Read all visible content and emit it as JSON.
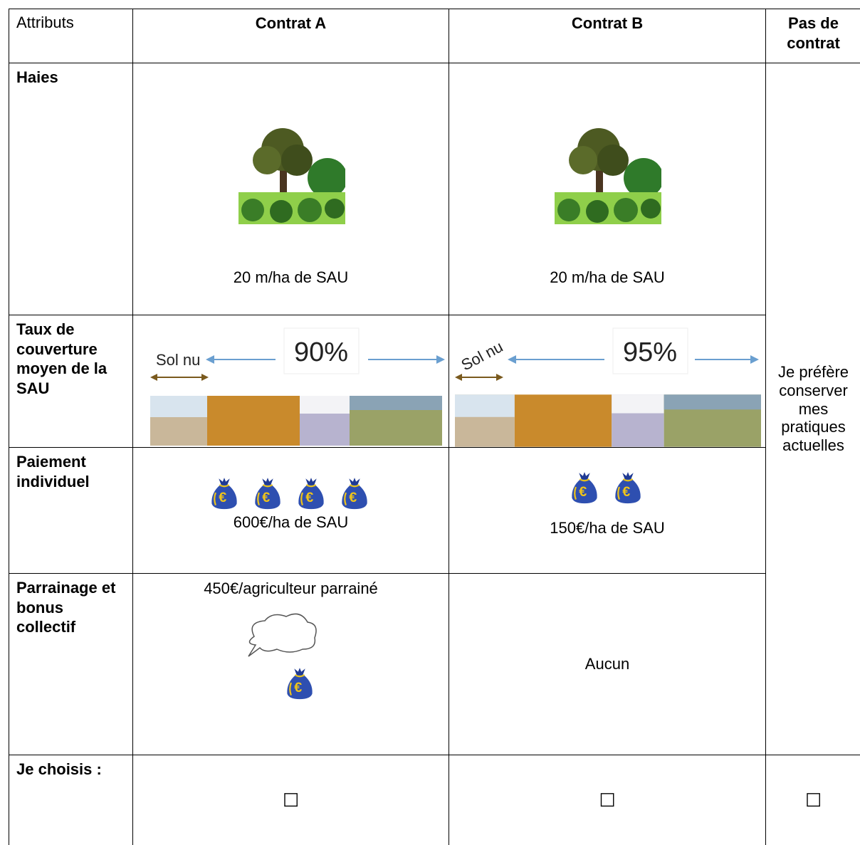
{
  "table": {
    "header": [
      "Attributs",
      "Contrat A",
      "Contrat B",
      "Pas de contrat"
    ],
    "rows": [
      {
        "label": "Haies",
        "a": "20 m/ha de SAU",
        "b": "20 m/ha de SAU"
      },
      {
        "label": "Taux de couverture moyen de la SAU",
        "a": {
          "soil": "Sol nu",
          "percent": "90%"
        },
        "b": {
          "soil": "Sol nu",
          "percent": "95%"
        }
      },
      {
        "label": "Paiement individuel",
        "a": "600€/ha de SAU",
        "b": "150€/ha de SAU"
      },
      {
        "label": "Parrainage et bonus collectif",
        "a": "450€/agriculteur parrainé",
        "b": "Aucun"
      },
      {
        "label": "Je choisis :",
        "a": "☐",
        "b": "☐",
        "c": "☐"
      }
    ],
    "no_contract": "Je préfère conserver mes pratiques actuelles"
  }
}
